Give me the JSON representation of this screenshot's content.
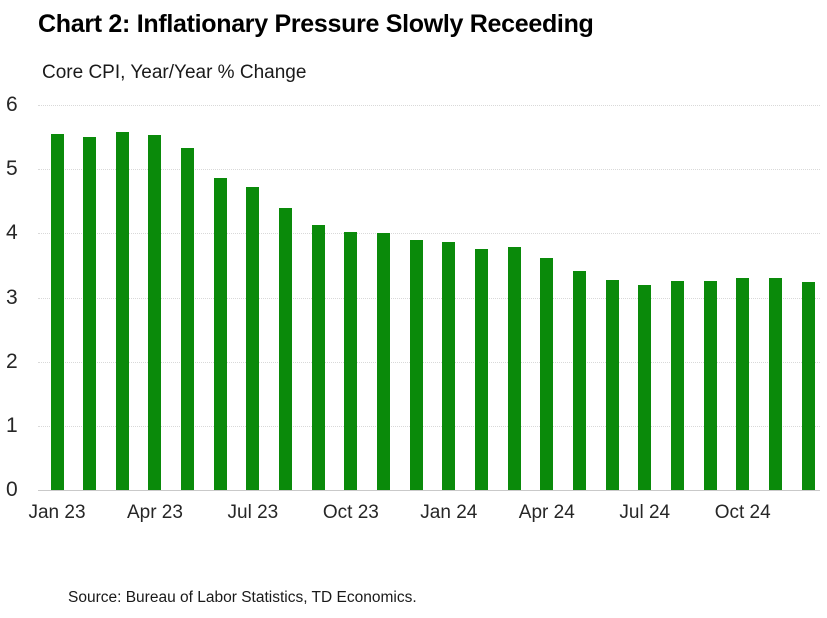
{
  "title": "Chart 2: Inflationary Pressure Slowly Receeding",
  "subtitle": "Core CPI, Year/Year % Change",
  "source": "Source: Bureau of Labor Statistics, TD Economics.",
  "chart_data": {
    "type": "bar",
    "title": "Chart 2: Inflationary Pressure Slowly Receeding",
    "subtitle": "Core CPI, Year/Year % Change",
    "categories": [
      "Jan 23",
      "Feb 23",
      "Mar 23",
      "Apr 23",
      "May 23",
      "Jun 23",
      "Jul 23",
      "Aug 23",
      "Sep 23",
      "Oct 23",
      "Nov 23",
      "Dec 23",
      "Jan 24",
      "Feb 24",
      "Mar 24",
      "Apr 24",
      "May 24",
      "Jun 24",
      "Jul 24",
      "Aug 24",
      "Sep 24",
      "Oct 24",
      "Nov 24",
      "Dec 24"
    ],
    "values": [
      5.55,
      5.5,
      5.58,
      5.53,
      5.33,
      4.86,
      4.72,
      4.39,
      4.13,
      4.02,
      4.01,
      3.9,
      3.87,
      3.76,
      3.79,
      3.62,
      3.42,
      3.28,
      3.2,
      3.26,
      3.25,
      3.3,
      3.3,
      3.24
    ],
    "ylabel": "Core CPI, Year/Year % Change",
    "xlabel": "",
    "ylim": [
      0,
      6
    ],
    "y_ticks": [
      0,
      1,
      2,
      3,
      4,
      5,
      6
    ],
    "x_tick_labels": [
      "Jan 23",
      "Apr 23",
      "Jul 23",
      "Oct 23",
      "Jan 24",
      "Apr 24",
      "Jul 24",
      "Oct 24"
    ],
    "x_tick_every": 3,
    "grid": true,
    "legend": false,
    "bar_color": "#0a8a0a",
    "gridline_color": "#d9d9d9"
  }
}
